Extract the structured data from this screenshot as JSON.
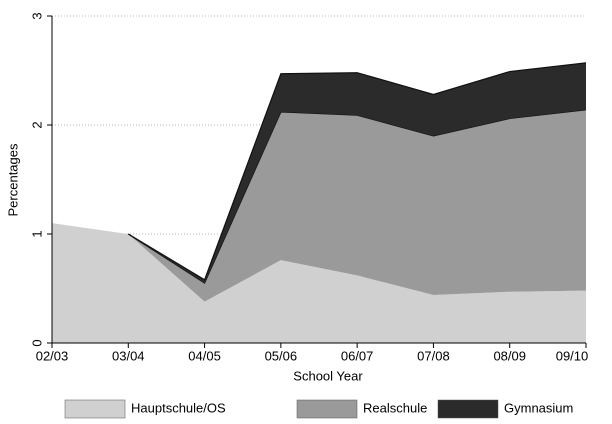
{
  "chart_data": {
    "type": "stacked_area",
    "x_label": "School Year",
    "y_label": "Percentages",
    "categories": [
      "02/03",
      "03/04",
      "04/05",
      "05/06",
      "06/07",
      "07/08",
      "08/09",
      "09/10"
    ],
    "series": [
      {
        "name": "Hauptschule/OS",
        "color": "#d0d0d0",
        "values": [
          1.1,
          1.0,
          0.38,
          0.76,
          0.62,
          0.44,
          0.47,
          0.48
        ]
      },
      {
        "name": "Realschule",
        "color": "#9a9a9a",
        "values": [
          null,
          0,
          0.17,
          1.36,
          1.47,
          1.46,
          1.59,
          1.66
        ]
      },
      {
        "name": "Gymnasium",
        "color": "#2b2b2b",
        "values": [
          null,
          0,
          0.03,
          0.35,
          0.39,
          0.38,
          0.43,
          0.43
        ]
      }
    ],
    "ylim": [
      0,
      3
    ],
    "yticks": [
      0,
      1,
      2,
      3
    ],
    "grid": true
  }
}
